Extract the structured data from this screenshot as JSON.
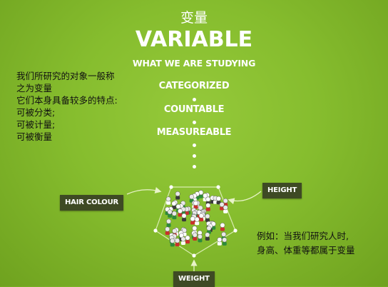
{
  "header": {
    "zh_title": "变量",
    "title": "VARIABLE",
    "subtitle": "WHAT WE ARE STUDYING"
  },
  "properties": [
    "CATEGORIZED",
    "COUNTABLE",
    "MEASUREABLE"
  ],
  "left_note": {
    "lines": [
      "我们所研究的对象一般称",
      "之为变量",
      "它们本身具备较多的特点:",
      "可被分类;",
      "可被计量;",
      "可被衡量"
    ]
  },
  "right_note": {
    "lines": [
      "例如：当我们研究人时,",
      "身高、体重等都属于变量"
    ]
  },
  "labels": {
    "hair_colour": "HAIR COLOUR",
    "height": "HEIGHT",
    "weight": "WEIGHT"
  },
  "colors": {
    "background": "#86bd2e",
    "tag_background": "#3e4a24",
    "text_light": "#ffffff",
    "text_dark": "#111111"
  }
}
